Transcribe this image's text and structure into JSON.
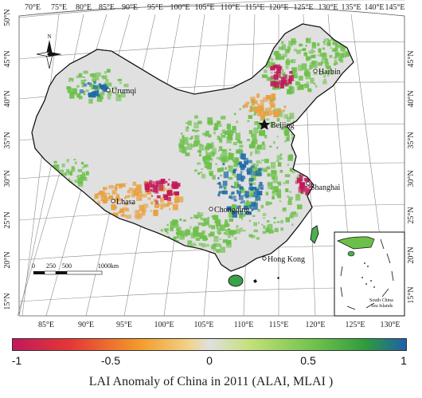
{
  "title": "LAI Anomaly of China in 2011 (ALAI, MLAI )",
  "top_lon_labels": [
    "70°E",
    "75°E",
    "80°E",
    "85°E",
    "90°E",
    "95°E",
    "100°E",
    "105°E",
    "110°E",
    "115°E",
    "120°E",
    "125°E",
    "130°E",
    "135°E",
    "140°E",
    "145°E"
  ],
  "bottom_lon_labels": [
    "85°E",
    "90°E",
    "95°E",
    "100°E",
    "105°E",
    "110°E",
    "115°E",
    "120°E",
    "125°E",
    "130°E"
  ],
  "left_lat_labels": [
    "50°N",
    "45°N",
    "40°N",
    "35°N",
    "30°N",
    "25°N",
    "20°N",
    "15°N"
  ],
  "right_lat_labels": [
    "45°N",
    "40°N",
    "35°N",
    "30°N",
    "25°N",
    "20°N",
    "15°N"
  ],
  "cities": [
    {
      "name": "Harbin",
      "marker": "circle"
    },
    {
      "name": "Urumqi",
      "marker": "circle"
    },
    {
      "name": "Beijing",
      "marker": "star"
    },
    {
      "name": "Shanghai",
      "marker": "circle"
    },
    {
      "name": "Lhasa",
      "marker": "circle"
    },
    {
      "name": "Chongqing",
      "marker": "circle"
    },
    {
      "name": "Hong Kong",
      "marker": "circle"
    }
  ],
  "north_arrow_label": "N",
  "scale_bar": {
    "labels": [
      "0",
      "250",
      "500",
      "1000km"
    ]
  },
  "inset": {
    "label_line1": "South China",
    "label_line2": "Sea Islands"
  },
  "colorbar": {
    "min": -1,
    "max": 1,
    "tick_labels": [
      "-1",
      "-0.5",
      "0",
      "0.5",
      "1"
    ],
    "tick_values": [
      -1,
      -0.5,
      0,
      0.5,
      1
    ],
    "stops": [
      {
        "value": -1,
        "color": "#c2185b"
      },
      {
        "value": -0.7,
        "color": "#e53935"
      },
      {
        "value": -0.35,
        "color": "#f39c2b"
      },
      {
        "value": -0.1,
        "color": "#f2d38a"
      },
      {
        "value": 0,
        "color": "#e0e0e0"
      },
      {
        "value": 0.2,
        "color": "#c5e17a"
      },
      {
        "value": 0.55,
        "color": "#6cc04a"
      },
      {
        "value": 0.8,
        "color": "#2e9a3e"
      },
      {
        "value": 1,
        "color": "#1e5fa8"
      }
    ]
  },
  "colors": {
    "no_change": "#e0e0e0",
    "positive": "#6cc04a",
    "strong_positive": "#1e6aa8",
    "negative": "#e8a040",
    "strong_negative": "#c2185b",
    "graticule": "#8a8a8a"
  }
}
